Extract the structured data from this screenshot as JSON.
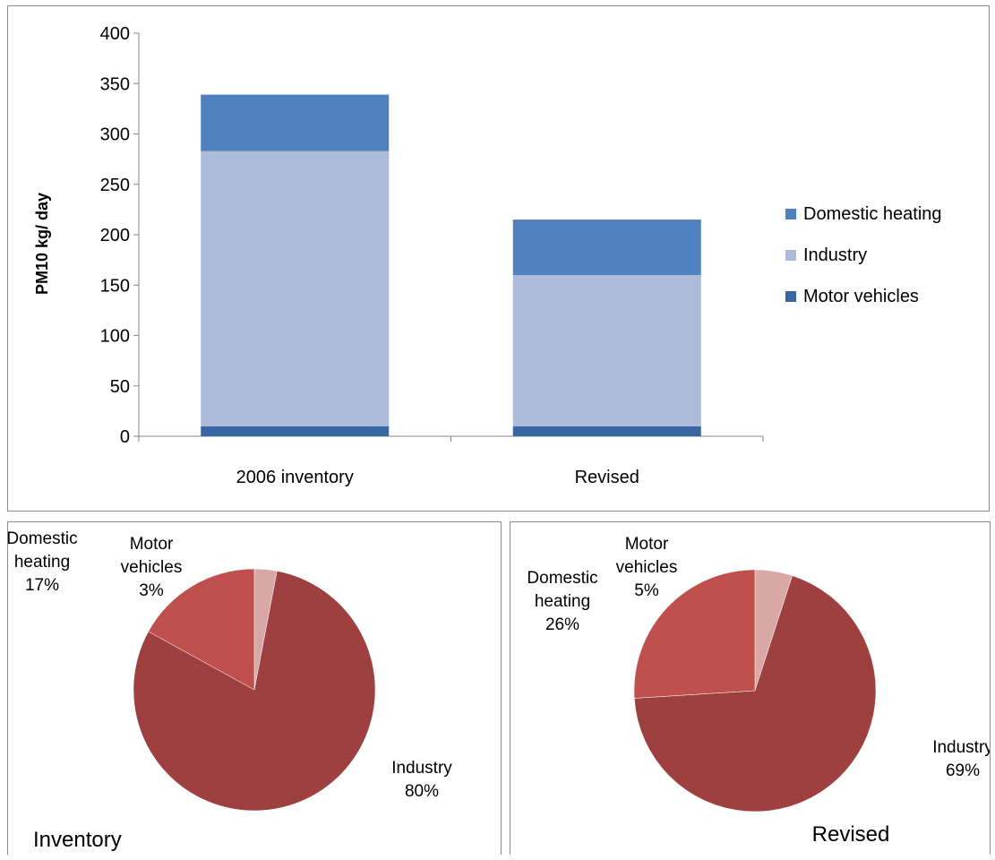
{
  "chart_data": [
    {
      "type": "bar",
      "stacked": true,
      "categories": [
        "2006 inventory",
        "Revised"
      ],
      "ylabel": "PM10 kg/ day",
      "xlabel": "",
      "ylim": [
        0,
        400
      ],
      "yticks": [
        0,
        50,
        100,
        150,
        200,
        250,
        300,
        350,
        400
      ],
      "legend_position": "right",
      "grid": false,
      "series": [
        {
          "name": "Motor vehicles",
          "values": [
            10,
            10
          ],
          "color": "#3a67a3"
        },
        {
          "name": "Industry",
          "values": [
            273,
            150
          ],
          "color": "#abbbd9"
        },
        {
          "name": "Domestic heating",
          "values": [
            56,
            55
          ],
          "color": "#4e81bd"
        }
      ],
      "legend_order": [
        "Domestic heating",
        "Industry",
        "Motor vehicles"
      ]
    },
    {
      "type": "pie",
      "title": "Inventory",
      "slices": [
        {
          "label_lines": [
            "Motor",
            "vehicles"
          ],
          "percent_label": "3%",
          "value": 3,
          "color": "#d9a7a6"
        },
        {
          "label_lines": [
            "Industry"
          ],
          "percent_label": "80%",
          "value": 80,
          "color": "#9e4040"
        },
        {
          "label_lines": [
            "Domestic",
            "heating"
          ],
          "percent_label": "17%",
          "value": 17,
          "color": "#c0504d"
        }
      ]
    },
    {
      "type": "pie",
      "title": "Revised",
      "slices": [
        {
          "label_lines": [
            "Motor",
            "vehicles"
          ],
          "percent_label": "5%",
          "value": 5,
          "color": "#d9a7a6"
        },
        {
          "label_lines": [
            "Industry"
          ],
          "percent_label": "69%",
          "value": 69,
          "color": "#9e4040"
        },
        {
          "label_lines": [
            "Domestic",
            "heating"
          ],
          "percent_label": "26%",
          "value": 26,
          "color": "#c0504d"
        }
      ]
    }
  ]
}
